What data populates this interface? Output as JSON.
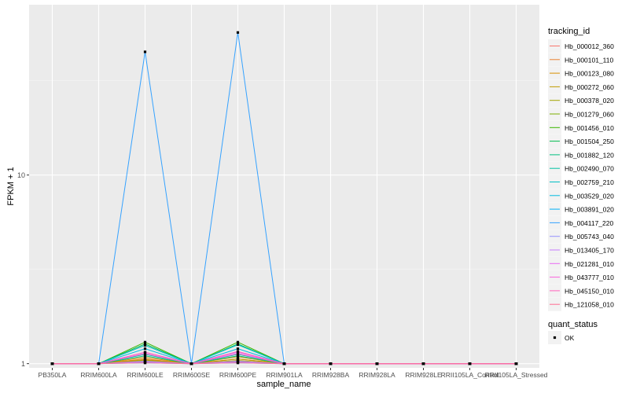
{
  "chart_data": {
    "type": "line",
    "xlabel": "sample_name",
    "ylabel": "FPKM + 1",
    "y_scale": "log10",
    "ylim": [
      0.95,
      80
    ],
    "yticks": [
      1,
      10
    ],
    "grid": true,
    "legend_position": "right",
    "categories": [
      "PB350LA",
      "RRIM600LA",
      "RRIM600LE",
      "RRIM600SE",
      "RRIM600PE",
      "RRIM901LA",
      "RRIM928BA",
      "RRIM928LA",
      "RRIM928LE",
      "RRII105LA_Control",
      "RRII105LA_Stressed"
    ],
    "legend_title": "tracking_id",
    "series": [
      {
        "name": "Hb_000012_360",
        "color": "#F8766D",
        "values": [
          1,
          1,
          1.03,
          1,
          1.03,
          1,
          1,
          1,
          1,
          1,
          1
        ]
      },
      {
        "name": "Hb_000101_110",
        "color": "#EA8331",
        "values": [
          1,
          1,
          1.06,
          1,
          1.06,
          1,
          1,
          1,
          1,
          1,
          1
        ]
      },
      {
        "name": "Hb_000123_080",
        "color": "#D89000",
        "values": [
          1,
          1,
          1.08,
          1,
          1.09,
          1,
          1,
          1,
          1,
          1,
          1
        ]
      },
      {
        "name": "Hb_000272_060",
        "color": "#C09B00",
        "values": [
          1,
          1,
          1.05,
          1,
          1.06,
          1,
          1,
          1,
          1,
          1,
          1
        ]
      },
      {
        "name": "Hb_000378_020",
        "color": "#A3A500",
        "values": [
          1,
          1,
          1.04,
          1,
          1.04,
          1,
          1,
          1,
          1,
          1,
          1
        ]
      },
      {
        "name": "Hb_001279_060",
        "color": "#7CAE00",
        "values": [
          1,
          1,
          1.02,
          1,
          1.02,
          1,
          1,
          1,
          1,
          1,
          1
        ]
      },
      {
        "name": "Hb_001456_010",
        "color": "#39B600",
        "values": [
          1,
          1,
          1.3,
          1,
          1.3,
          1,
          1,
          1,
          1,
          1,
          1
        ]
      },
      {
        "name": "Hb_001504_250",
        "color": "#00BB4E",
        "values": [
          1,
          1,
          1.27,
          1,
          1.27,
          1,
          1,
          1,
          1,
          1,
          1
        ]
      },
      {
        "name": "Hb_001882_120",
        "color": "#00BF7D",
        "values": [
          1,
          1,
          1.1,
          1,
          1.1,
          1,
          1,
          1,
          1,
          1,
          1
        ]
      },
      {
        "name": "Hb_002490_070",
        "color": "#00C1A3",
        "values": [
          1,
          1,
          1.12,
          1,
          1.12,
          1,
          1,
          1,
          1,
          1,
          1
        ]
      },
      {
        "name": "Hb_002759_210",
        "color": "#00BFC4",
        "values": [
          1,
          1,
          1.25,
          1,
          1.26,
          1,
          1,
          1,
          1,
          1,
          1
        ]
      },
      {
        "name": "Hb_003529_020",
        "color": "#00BAE0",
        "values": [
          1,
          1,
          1.2,
          1,
          1.2,
          1,
          1,
          1,
          1,
          1,
          1
        ]
      },
      {
        "name": "Hb_003891_020",
        "color": "#00B0F6",
        "values": [
          1,
          1,
          1.01,
          1,
          1.01,
          1,
          1,
          1,
          1,
          1,
          1
        ]
      },
      {
        "name": "Hb_004117_220",
        "color": "#35A2FF",
        "values": [
          1,
          1,
          45,
          1,
          57,
          1,
          1,
          1,
          1,
          1,
          1
        ]
      },
      {
        "name": "Hb_005743_040",
        "color": "#9590FF",
        "values": [
          1,
          1,
          1.02,
          1,
          1.02,
          1,
          1,
          1,
          1,
          1,
          1
        ]
      },
      {
        "name": "Hb_013405_170",
        "color": "#C77CFF",
        "values": [
          1,
          1,
          1.03,
          1,
          1.03,
          1,
          1,
          1,
          1,
          1,
          1
        ]
      },
      {
        "name": "Hb_021281_010",
        "color": "#E76BF3",
        "values": [
          1,
          1,
          1.15,
          1,
          1.15,
          1,
          1,
          1,
          1,
          1,
          1
        ]
      },
      {
        "name": "Hb_043777_010",
        "color": "#FA62DB",
        "values": [
          1,
          1,
          1.13,
          1,
          1.13,
          1,
          1,
          1,
          1,
          1,
          1
        ]
      },
      {
        "name": "Hb_045150_010",
        "color": "#FF62BC",
        "values": [
          1,
          1,
          1.15,
          1,
          1.16,
          1,
          1,
          1,
          1,
          1,
          1
        ]
      },
      {
        "name": "Hb_121058_010",
        "color": "#FF6C91",
        "values": [
          1,
          1,
          1.01,
          1,
          1.01,
          1,
          1,
          1,
          1,
          1,
          1
        ]
      }
    ],
    "shape_legend": {
      "title": "quant_status",
      "entries": [
        "OK"
      ]
    }
  }
}
